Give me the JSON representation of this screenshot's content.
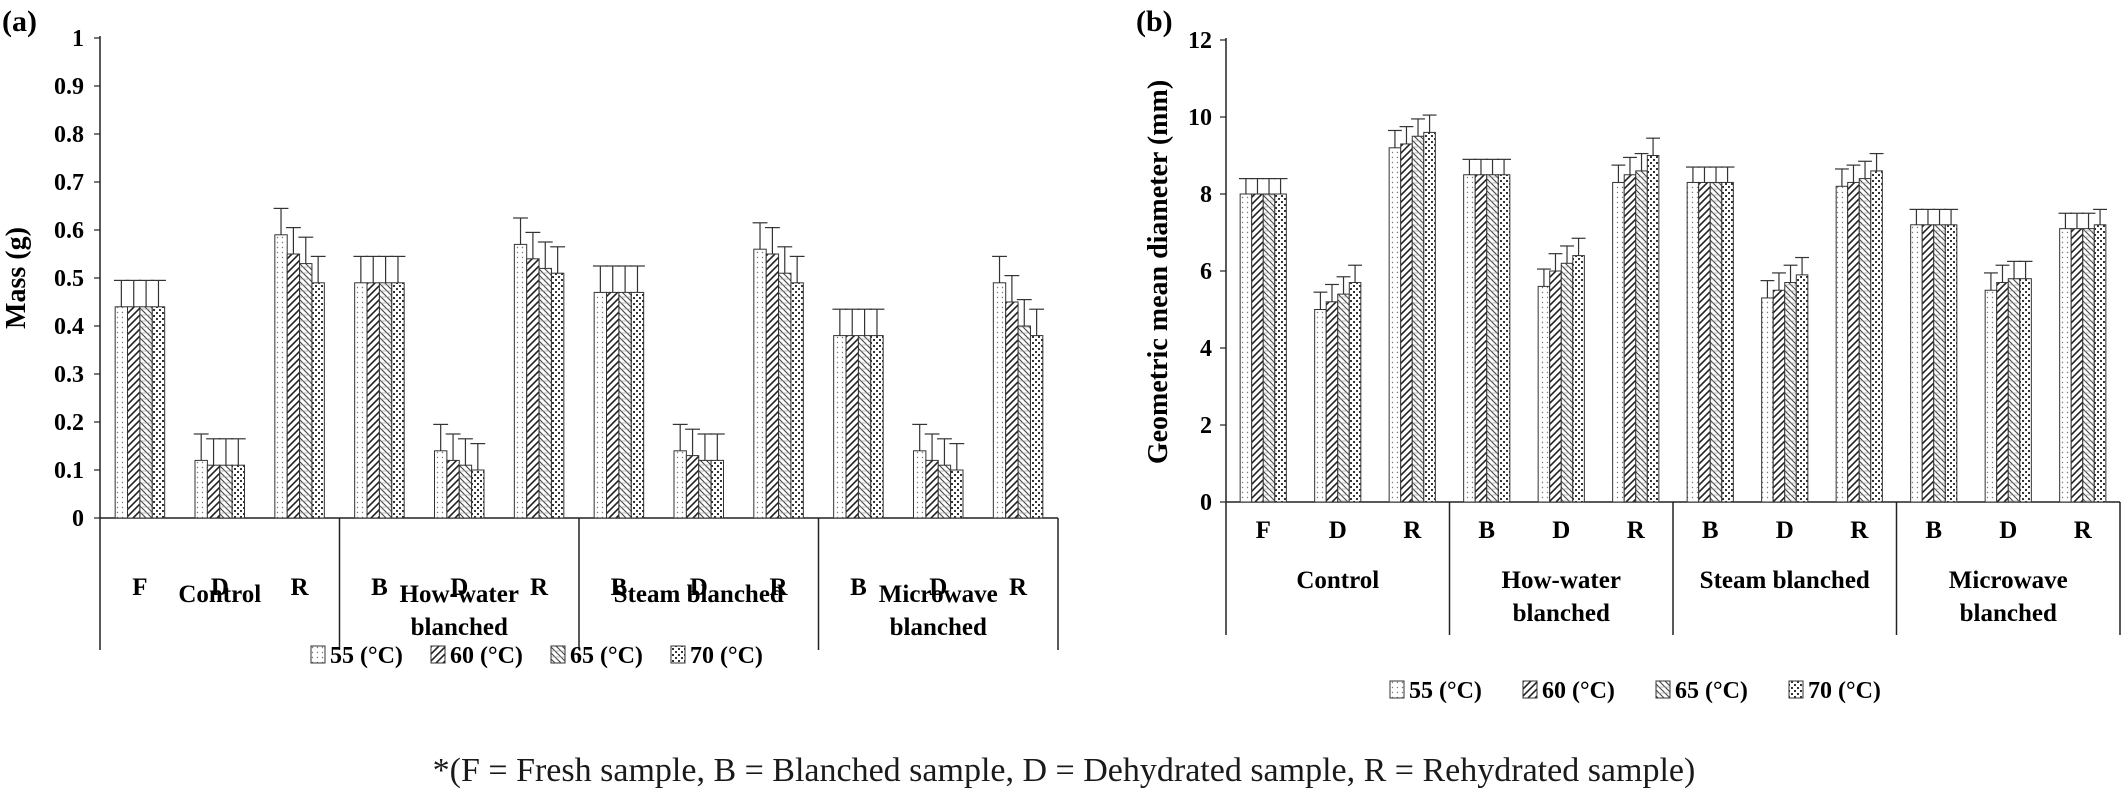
{
  "caption": "*(F = Fresh sample, B = Blanched sample, D = Dehydrated sample, R = Rehydrated sample)",
  "legend_labels": [
    "55 (°C)",
    "60 (°C)",
    "65 (°C)",
    "70 (°C)"
  ],
  "chart_data": [
    {
      "panel": "(a)",
      "type": "bar",
      "ylabel": "Mass (g)",
      "xlabel": "",
      "ylim": [
        0,
        1
      ],
      "yticks": [
        "0",
        "0.1",
        "0.2",
        "0.3",
        "0.4",
        "0.5",
        "0.6",
        "0.7",
        "0.8",
        "0.9",
        "1"
      ],
      "grid": false,
      "error_bars": true,
      "legend_position": "bottom",
      "groups": [
        {
          "label": "Control",
          "categories": [
            "F",
            "D",
            "R"
          ]
        },
        {
          "label": "How-water blanched",
          "categories": [
            "B",
            "D",
            "R"
          ]
        },
        {
          "label": "Steam blanched",
          "categories": [
            "B",
            "D",
            "R"
          ]
        },
        {
          "label": "Microwave blanched",
          "categories": [
            "B",
            "D",
            "R"
          ]
        }
      ],
      "series": [
        {
          "name": "55 (°C)",
          "values": [
            0.44,
            0.12,
            0.59,
            0.49,
            0.14,
            0.57,
            0.47,
            0.14,
            0.56,
            0.38,
            0.14,
            0.49
          ]
        },
        {
          "name": "60 (°C)",
          "values": [
            0.44,
            0.11,
            0.55,
            0.49,
            0.12,
            0.54,
            0.47,
            0.13,
            0.55,
            0.38,
            0.12,
            0.45
          ]
        },
        {
          "name": "65 (°C)",
          "values": [
            0.44,
            0.11,
            0.53,
            0.49,
            0.11,
            0.52,
            0.47,
            0.12,
            0.51,
            0.38,
            0.11,
            0.4
          ]
        },
        {
          "name": "70 (°C)",
          "values": [
            0.44,
            0.11,
            0.49,
            0.49,
            0.1,
            0.51,
            0.47,
            0.12,
            0.49,
            0.38,
            0.1,
            0.38
          ]
        }
      ],
      "errors": [
        [
          0.055,
          0.055,
          0.055,
          0.055,
          0.055,
          0.055,
          0.055,
          0.055,
          0.055,
          0.055,
          0.055,
          0.055
        ],
        [
          0.055,
          0.055,
          0.055,
          0.055,
          0.055,
          0.055,
          0.055,
          0.055,
          0.055,
          0.055,
          0.055,
          0.055
        ],
        [
          0.055,
          0.055,
          0.055,
          0.055,
          0.055,
          0.055,
          0.055,
          0.055,
          0.055,
          0.055,
          0.055,
          0.055
        ],
        [
          0.055,
          0.055,
          0.055,
          0.055,
          0.055,
          0.055,
          0.055,
          0.055,
          0.055,
          0.055,
          0.055,
          0.055
        ]
      ]
    },
    {
      "panel": "(b)",
      "type": "bar",
      "ylabel": "Geometric mean diameter (mm)",
      "xlabel": "",
      "ylim": [
        0,
        12
      ],
      "yticks": [
        "0",
        "2",
        "4",
        "6",
        "8",
        "10",
        "12"
      ],
      "grid": false,
      "error_bars": true,
      "legend_position": "bottom",
      "groups": [
        {
          "label": "Control",
          "categories": [
            "F",
            "D",
            "R"
          ]
        },
        {
          "label": "How-water blanched",
          "categories": [
            "B",
            "D",
            "R"
          ]
        },
        {
          "label": "Steam blanched",
          "categories": [
            "B",
            "D",
            "R"
          ]
        },
        {
          "label": "Microwave blanched",
          "categories": [
            "B",
            "D",
            "R"
          ]
        }
      ],
      "series": [
        {
          "name": "55 (°C)",
          "values": [
            8.0,
            5.0,
            9.2,
            8.5,
            5.6,
            8.3,
            8.3,
            5.3,
            8.2,
            7.2,
            5.5,
            7.1
          ]
        },
        {
          "name": "60 (°C)",
          "values": [
            8.0,
            5.2,
            9.3,
            8.5,
            6.0,
            8.5,
            8.3,
            5.5,
            8.3,
            7.2,
            5.7,
            7.1
          ]
        },
        {
          "name": "65 (°C)",
          "values": [
            8.0,
            5.4,
            9.5,
            8.5,
            6.2,
            8.6,
            8.3,
            5.7,
            8.4,
            7.2,
            5.8,
            7.1
          ]
        },
        {
          "name": "70 (°C)",
          "values": [
            8.0,
            5.7,
            9.6,
            8.5,
            6.4,
            9.0,
            8.3,
            5.9,
            8.6,
            7.2,
            5.8,
            7.2
          ]
        }
      ],
      "errors": [
        [
          0.4,
          0.45,
          0.45,
          0.4,
          0.45,
          0.45,
          0.4,
          0.45,
          0.45,
          0.4,
          0.45,
          0.4
        ],
        [
          0.4,
          0.45,
          0.45,
          0.4,
          0.45,
          0.45,
          0.4,
          0.45,
          0.45,
          0.4,
          0.45,
          0.4
        ],
        [
          0.4,
          0.45,
          0.45,
          0.4,
          0.45,
          0.45,
          0.4,
          0.45,
          0.45,
          0.4,
          0.45,
          0.4
        ],
        [
          0.4,
          0.45,
          0.45,
          0.4,
          0.45,
          0.45,
          0.4,
          0.45,
          0.45,
          0.4,
          0.45,
          0.4
        ]
      ]
    }
  ]
}
